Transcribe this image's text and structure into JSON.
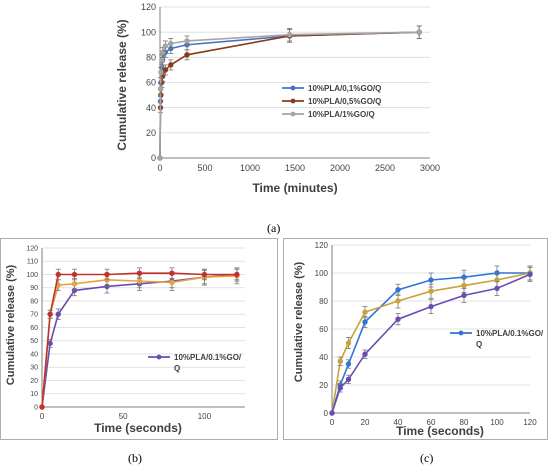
{
  "figure": {
    "caption_a": "(a)",
    "caption_b": "(b)",
    "caption_c": "(c)"
  },
  "chart_data": [
    {
      "id": "a",
      "type": "line",
      "xlabel": "Time (minutes)",
      "ylabel": "Cumulative release (%)",
      "xlim": [
        0,
        3000
      ],
      "ylim": [
        0,
        120
      ],
      "xticks": [
        0,
        500,
        1000,
        1500,
        2000,
        2500,
        3000
      ],
      "yticks": [
        0,
        20,
        40,
        60,
        80,
        100,
        120
      ],
      "grid": "horizontal",
      "legend_position": "center-right",
      "series": [
        {
          "name": "10%PLA/0,1%GO/Q",
          "color": "#4472C4",
          "x": [
            0,
            5,
            10,
            20,
            30,
            60,
            120,
            300,
            1440,
            2880
          ],
          "y": [
            0,
            45,
            60,
            72,
            78,
            84,
            87,
            90,
            97,
            100
          ],
          "err": [
            0,
            4,
            4,
            4,
            4,
            4,
            4,
            4,
            5,
            5
          ]
        },
        {
          "name": "10%PLA/0,5%GO/Q",
          "color": "#8B3A1A",
          "x": [
            0,
            5,
            10,
            20,
            30,
            60,
            120,
            300,
            1440,
            2880
          ],
          "y": [
            0,
            40,
            50,
            60,
            65,
            70,
            74,
            82,
            97,
            100
          ],
          "err": [
            0,
            4,
            4,
            4,
            4,
            4,
            4,
            4,
            5,
            5
          ]
        },
        {
          "name": "10%PLA/1%GO/Q",
          "color": "#A5A5A5",
          "x": [
            0,
            5,
            10,
            20,
            30,
            60,
            120,
            300,
            1440,
            2880
          ],
          "y": [
            0,
            55,
            68,
            78,
            84,
            89,
            91,
            93,
            98,
            100
          ],
          "err": [
            0,
            4,
            4,
            4,
            4,
            4,
            4,
            4,
            5,
            5
          ]
        }
      ]
    },
    {
      "id": "b",
      "type": "line",
      "xlabel": "Time (seconds)",
      "ylabel": "Cumulative release (%)",
      "xlim": [
        0,
        125
      ],
      "ylim": [
        0,
        120
      ],
      "xticks": [
        0,
        50,
        100
      ],
      "yticks": [
        0,
        10,
        20,
        30,
        40,
        50,
        60,
        70,
        80,
        90,
        100,
        110,
        120
      ],
      "grid": "horizontal",
      "legend_position": "center-right",
      "legend_lines": [
        "10%PLA/0.1%GO/",
        "Q"
      ],
      "series": [
        {
          "name": "10%PLA/0.1%GO/Q",
          "color": "#6A4BB5",
          "x": [
            0,
            5,
            10,
            20,
            40,
            60,
            80,
            100,
            120
          ],
          "y": [
            0,
            48,
            70,
            88,
            91,
            93,
            95,
            98,
            100
          ],
          "err": [
            0,
            3,
            4,
            4,
            5,
            5,
            5,
            5,
            5
          ]
        },
        {
          "color": "#E8A33C",
          "x": [
            0,
            5,
            10,
            20,
            40,
            60,
            80,
            100,
            120
          ],
          "y": [
            0,
            70,
            92,
            93,
            96,
            95,
            94,
            98,
            99
          ],
          "err": [
            0,
            3,
            4,
            4,
            5,
            5,
            6,
            6,
            6
          ]
        },
        {
          "color": "#C0322B",
          "x": [
            0,
            5,
            10,
            20,
            40,
            60,
            80,
            100,
            120
          ],
          "y": [
            0,
            70,
            100,
            100,
            100,
            101,
            101,
            100,
            100
          ],
          "err": [
            0,
            3,
            4,
            4,
            4,
            4,
            4,
            4,
            4
          ]
        }
      ]
    },
    {
      "id": "c",
      "type": "line",
      "xlabel": "Time (seconds)",
      "ylabel": "Cumulative release (%)",
      "xlim": [
        0,
        120
      ],
      "ylim": [
        0,
        120
      ],
      "xticks": [
        0,
        20,
        40,
        60,
        80,
        100,
        120
      ],
      "yticks": [
        0,
        20,
        40,
        60,
        80,
        100,
        120
      ],
      "grid": "horizontal",
      "legend_position": "center-right",
      "legend_lines": [
        "10%PLA/0.1%GO/",
        "Q"
      ],
      "series": [
        {
          "name": "10%PLA/0.1%GO/Q",
          "color": "#2E75D6",
          "x": [
            0,
            5,
            10,
            20,
            40,
            60,
            80,
            100,
            120
          ],
          "y": [
            0,
            20,
            35,
            65,
            88,
            95,
            97,
            100,
            100
          ],
          "err": [
            0,
            3,
            3,
            4,
            4,
            5,
            5,
            5,
            5
          ]
        },
        {
          "color": "#C9A23A",
          "x": [
            0,
            5,
            10,
            20,
            40,
            60,
            80,
            100,
            120
          ],
          "y": [
            0,
            37,
            50,
            72,
            80,
            87,
            91,
            95,
            100
          ],
          "err": [
            0,
            3,
            4,
            4,
            5,
            5,
            5,
            5,
            5
          ]
        },
        {
          "color": "#6A4BB5",
          "x": [
            0,
            5,
            10,
            20,
            40,
            60,
            80,
            100,
            120
          ],
          "y": [
            0,
            18,
            24,
            42,
            67,
            76,
            84,
            89,
            99
          ],
          "err": [
            0,
            3,
            3,
            3,
            4,
            5,
            5,
            5,
            5
          ]
        }
      ]
    }
  ]
}
